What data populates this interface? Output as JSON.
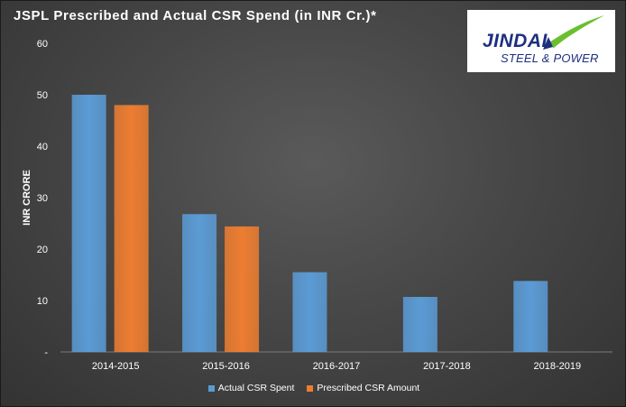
{
  "title": "JSPL Prescribed  and Actual CSR Spend (in INR Cr.)*",
  "logo": {
    "line1": "JINDAL",
    "line2": "STEEL & POWER",
    "colors": {
      "text": "#1e2f80",
      "swoosh": "#6abf2e"
    }
  },
  "chart_data": {
    "type": "bar",
    "categories": [
      "2014-2015",
      "2015-2016",
      "2016-2017",
      "2017-2018",
      "2018-2019"
    ],
    "series": [
      {
        "name": "Actual CSR Spent",
        "values": [
          50,
          26.8,
          15.5,
          10.7,
          13.8
        ],
        "color": "#5b9bd5"
      },
      {
        "name": "Prescribed CSR Amount",
        "values": [
          48,
          24.4,
          null,
          null,
          null
        ],
        "color": "#ed7d31"
      }
    ],
    "ylabel": "INR CRORE",
    "yticks": [
      "-",
      "10",
      "20",
      "30",
      "40",
      "50",
      "60"
    ],
    "ylim": [
      0,
      60
    ],
    "grid": false,
    "legend": "bottom"
  }
}
